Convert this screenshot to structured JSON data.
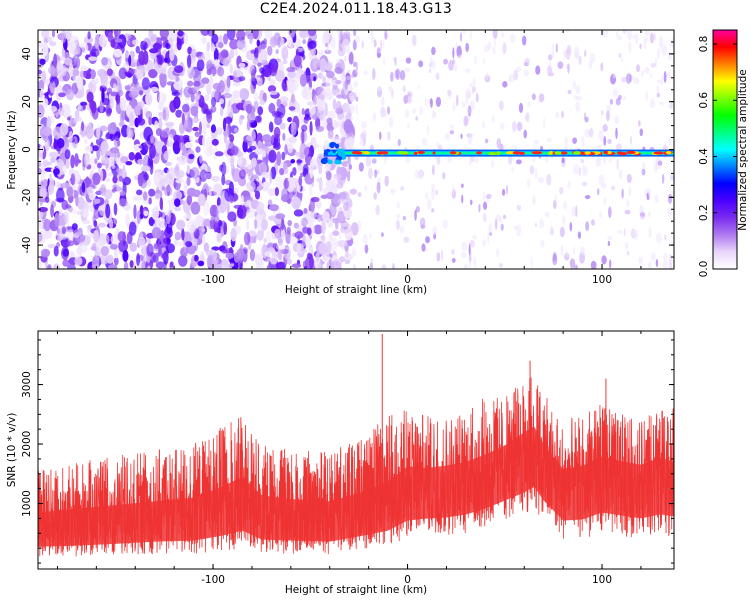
{
  "title": "C2E4.2024.011.18.43.G13",
  "chart_data": [
    {
      "type": "heatmap",
      "xlabel": "Height of straight line (km)",
      "ylabel": "Frequency (Hz)",
      "xlim": [
        -190,
        137
      ],
      "ylim": [
        -50,
        50
      ],
      "x_ticks": [
        -100,
        0,
        100
      ],
      "y_ticks": [
        -40,
        -20,
        0,
        20,
        40
      ],
      "colorbar": {
        "label": "Normalized spectral amplitude",
        "range": [
          0,
          0.85
        ],
        "ticks": [
          0.0,
          0.2,
          0.4,
          0.6,
          0.8
        ],
        "colors": [
          "#ffffff",
          "#e9d6fb",
          "#b07af0",
          "#7a2cf0",
          "#4a00ff",
          "#0000ff",
          "#0080ff",
          "#00ffff",
          "#00ff80",
          "#00ff00",
          "#80ff00",
          "#ffff00",
          "#ff8000",
          "#ff0000",
          "#ff00a0"
        ]
      },
      "features": {
        "noise_band_x": [
          -190,
          -35
        ],
        "tone_start_x": -43,
        "tone_frequency_hz": -1.5
      }
    },
    {
      "type": "line",
      "xlabel": "Height of straight line (km)",
      "ylabel": "SNR (10 * v/v)",
      "xlim": [
        -190,
        137
      ],
      "ylim": [
        -100,
        3900
      ],
      "x_ticks": [
        -100,
        0,
        100
      ],
      "y_ticks": [
        1000,
        2000,
        3000
      ],
      "series_color": "#ee3333",
      "envelope": {
        "x": [
          -190,
          -170,
          -150,
          -130,
          -110,
          -95,
          -85,
          -75,
          -60,
          -40,
          -20,
          -10,
          0,
          10,
          20,
          30,
          40,
          50,
          60,
          65,
          70,
          80,
          90,
          100,
          110,
          120,
          130,
          137
        ],
        "upper": [
          1600,
          1700,
          1800,
          1900,
          2000,
          2300,
          2500,
          2000,
          1900,
          1900,
          2200,
          2500,
          2600,
          2500,
          2500,
          2600,
          2800,
          2800,
          3100,
          3200,
          2900,
          2400,
          2500,
          2700,
          2500,
          2400,
          2600,
          2600
        ],
        "mean": [
          600,
          650,
          700,
          750,
          800,
          950,
          1100,
          850,
          800,
          750,
          900,
          1000,
          1300,
          1300,
          1350,
          1400,
          1500,
          1700,
          1900,
          2000,
          1700,
          1300,
          1350,
          1500,
          1450,
          1400,
          1500,
          1400
        ],
        "lower": [
          100,
          100,
          120,
          150,
          150,
          200,
          250,
          150,
          150,
          150,
          250,
          300,
          400,
          450,
          450,
          500,
          600,
          700,
          800,
          900,
          700,
          400,
          400,
          500,
          450,
          400,
          450,
          450
        ]
      },
      "spikes": [
        {
          "x": -13,
          "y": 3850
        },
        {
          "x": 63,
          "y": 3400
        },
        {
          "x": 102,
          "y": 3100
        }
      ]
    }
  ]
}
